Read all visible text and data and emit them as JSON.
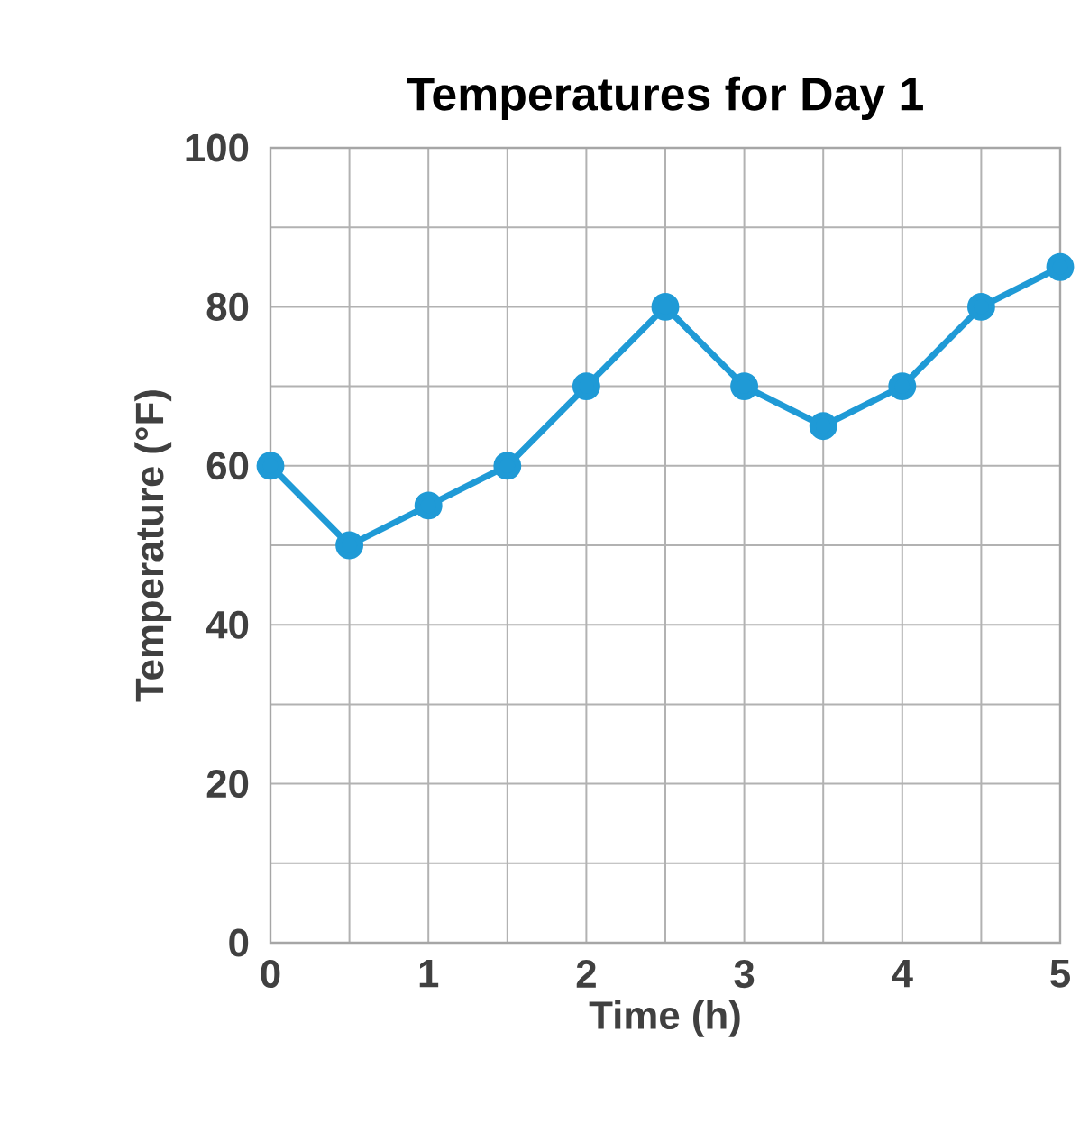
{
  "chart_data": {
    "type": "line",
    "title": "Temperatures for Day 1",
    "xlabel": "Time (h)",
    "ylabel": "Temperature (°F)",
    "x": [
      0,
      0.5,
      1,
      1.5,
      2,
      2.5,
      3,
      3.5,
      4,
      4.5,
      5
    ],
    "values": [
      60,
      50,
      55,
      60,
      70,
      80,
      70,
      65,
      70,
      80,
      85
    ],
    "color": "#1f9ad6",
    "marker": "circle",
    "line_style": "solid",
    "grid": true,
    "xlim": [
      0,
      5
    ],
    "ylim": [
      0,
      100
    ],
    "xticks": [
      0,
      {
        "value": 0.5,
        "label": null
      },
      1,
      {
        "value": 1.5,
        "label": null
      },
      2,
      {
        "value": 2.5,
        "label": null
      },
      3,
      {
        "value": 3.5,
        "label": null
      },
      4,
      {
        "value": 4.5,
        "label": null
      },
      5
    ],
    "yticks": [
      0,
      {
        "value": 10,
        "label": null
      },
      20,
      {
        "value": 30,
        "label": null
      },
      40,
      {
        "value": 50,
        "label": null
      },
      60,
      {
        "value": 70,
        "label": null
      },
      80,
      {
        "value": 90,
        "label": null
      },
      100
    ]
  }
}
